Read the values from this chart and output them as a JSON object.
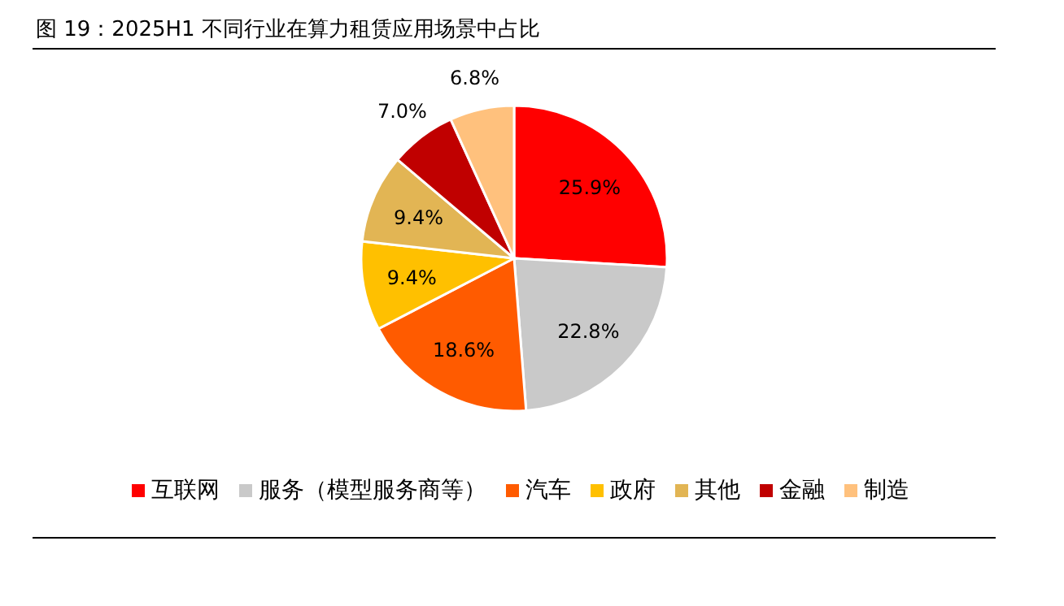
{
  "chart_data": {
    "type": "pie",
    "title": "图 19：2025H1 不同行业在算力租赁应用场景中占比",
    "categories": [
      "互联网",
      "服务（模型服务商等）",
      "汽车",
      "政府",
      "其他",
      "金融",
      "制造"
    ],
    "values": [
      25.9,
      22.8,
      18.6,
      9.4,
      9.4,
      7.0,
      6.8
    ],
    "value_labels": [
      "25.9%",
      "22.8%",
      "18.6%",
      "9.4%",
      "9.4%",
      "7.0%",
      "6.8%"
    ],
    "colors": [
      "#ff0000",
      "#c9c9c9",
      "#ff5b00",
      "#ffc000",
      "#e2b554",
      "#c00000",
      "#ffc17d"
    ],
    "legend": "bottom"
  }
}
